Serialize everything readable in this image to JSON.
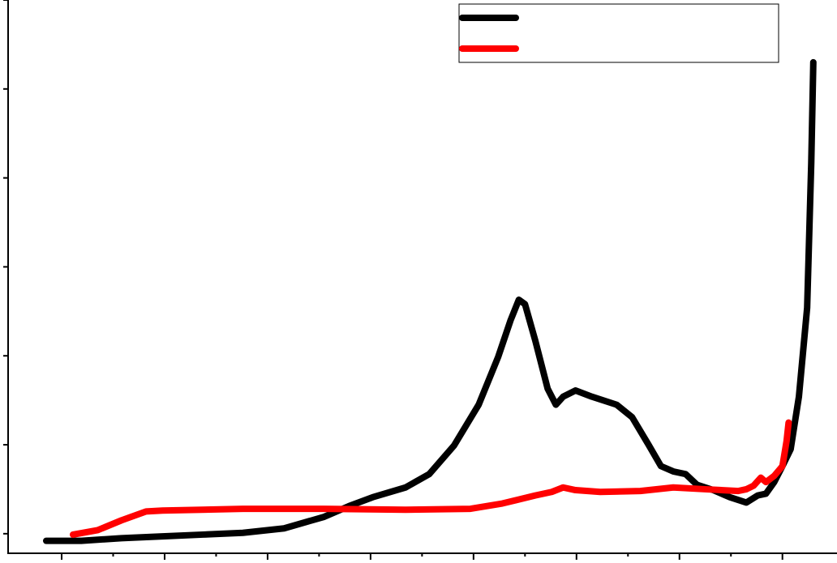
{
  "chart_data": {
    "type": "line",
    "xlim": [
      -0.52,
      7.53
    ],
    "ylim": [
      -0.22,
      6
    ],
    "xticks": [
      0,
      1,
      2,
      3,
      4,
      5,
      6,
      7
    ],
    "xticks_minor": [
      0.5,
      1.5,
      2.5,
      3.5,
      4.5,
      5.5,
      6.5
    ],
    "yticks": [
      0,
      1,
      2,
      3,
      4,
      5,
      6
    ],
    "legend": "upper right",
    "series": [
      {
        "color": "#000000",
        "x": [
          -0.15,
          0.19,
          0.58,
          0.98,
          1.37,
          1.76,
          2.16,
          2.55,
          2.79,
          3.02,
          3.34,
          3.57,
          3.81,
          4.05,
          4.24,
          4.36,
          4.44,
          4.5,
          4.6,
          4.72,
          4.8,
          4.87,
          4.99,
          5.15,
          5.39,
          5.54,
          5.7,
          5.82,
          5.94,
          6.06,
          6.17,
          6.33,
          6.49,
          6.65,
          6.76,
          6.84,
          6.92,
          7.0,
          7.08,
          7.16,
          7.24,
          7.28,
          7.3
        ],
        "values": [
          -0.08,
          -0.08,
          -0.05,
          -0.03,
          -0.01,
          0.01,
          0.06,
          0.19,
          0.31,
          0.41,
          0.52,
          0.67,
          0.99,
          1.45,
          1.99,
          2.4,
          2.63,
          2.58,
          2.17,
          1.63,
          1.45,
          1.54,
          1.61,
          1.54,
          1.45,
          1.31,
          1.0,
          0.76,
          0.7,
          0.67,
          0.55,
          0.49,
          0.41,
          0.35,
          0.43,
          0.45,
          0.58,
          0.76,
          0.95,
          1.54,
          2.54,
          4.17,
          5.3
        ]
      },
      {
        "color": "#ff0000",
        "x": [
          0.11,
          0.35,
          0.58,
          0.82,
          0.98,
          1.76,
          2.55,
          3.34,
          3.97,
          4.28,
          4.6,
          4.76,
          4.87,
          4.99,
          5.23,
          5.62,
          5.94,
          6.25,
          6.57,
          6.65,
          6.72,
          6.79,
          6.84,
          6.92,
          7.0,
          7.04,
          7.06
        ],
        "values": [
          -0.01,
          0.04,
          0.15,
          0.25,
          0.26,
          0.28,
          0.28,
          0.27,
          0.28,
          0.34,
          0.43,
          0.47,
          0.52,
          0.49,
          0.47,
          0.48,
          0.52,
          0.5,
          0.48,
          0.5,
          0.54,
          0.63,
          0.58,
          0.65,
          0.76,
          1.04,
          1.25
        ]
      }
    ]
  }
}
